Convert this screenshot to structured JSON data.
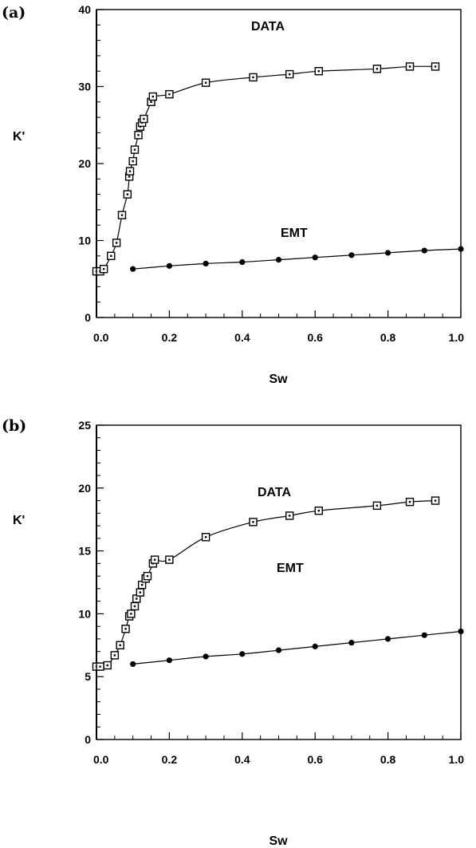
{
  "chart_data": [
    {
      "type": "line",
      "panel_label": "(a)",
      "xlabel": "Sw",
      "ylabel": "K'",
      "xlim": [
        0.0,
        1.0
      ],
      "ylim": [
        0,
        40
      ],
      "xticks": [
        "0.0",
        "0.2",
        "0.4",
        "0.6",
        "0.8",
        "1.0"
      ],
      "yticks": [
        "0",
        "10",
        "20",
        "30",
        "40"
      ],
      "grid": false,
      "legend": "none",
      "series": [
        {
          "name": "DATA",
          "marker": "open-square",
          "color": "#000000",
          "x": [
            0.0,
            0.01,
            0.02,
            0.04,
            0.055,
            0.07,
            0.085,
            0.09,
            0.092,
            0.1,
            0.105,
            0.115,
            0.12,
            0.125,
            0.13,
            0.15,
            0.155,
            0.2,
            0.3,
            0.43,
            0.53,
            0.61,
            0.77,
            0.86,
            0.93
          ],
          "y": [
            6.0,
            6.0,
            6.3,
            8.0,
            9.7,
            13.3,
            16.0,
            18.3,
            19.0,
            20.3,
            21.8,
            23.7,
            24.8,
            25.3,
            25.8,
            28.0,
            28.7,
            29.0,
            30.5,
            31.2,
            31.6,
            32.0,
            32.3,
            32.6,
            32.6
          ]
        },
        {
          "name": "EMT",
          "marker": "filled-circle",
          "color": "#000000",
          "x": [
            0.1,
            0.2,
            0.3,
            0.4,
            0.5,
            0.6,
            0.7,
            0.8,
            0.9,
            1.0
          ],
          "y": [
            6.3,
            6.7,
            7.0,
            7.2,
            7.5,
            7.8,
            8.1,
            8.4,
            8.7,
            8.9
          ]
        }
      ]
    },
    {
      "type": "line",
      "panel_label": "(b)",
      "xlabel": "Sw",
      "ylabel": "K'",
      "xlim": [
        0.0,
        1.0
      ],
      "ylim": [
        0,
        25
      ],
      "xticks": [
        "0.0",
        "0.2",
        "0.4",
        "0.6",
        "0.8",
        "1.0"
      ],
      "yticks": [
        "0",
        "5",
        "10",
        "15",
        "20",
        "25"
      ],
      "grid": false,
      "legend": "none",
      "series": [
        {
          "name": "DATA",
          "marker": "open-square",
          "color": "#000000",
          "x": [
            0.0,
            0.01,
            0.03,
            0.05,
            0.065,
            0.08,
            0.09,
            0.095,
            0.105,
            0.11,
            0.12,
            0.125,
            0.135,
            0.14,
            0.155,
            0.16,
            0.2,
            0.3,
            0.43,
            0.53,
            0.61,
            0.77,
            0.86,
            0.93
          ],
          "y": [
            5.8,
            5.8,
            5.9,
            6.7,
            7.5,
            8.8,
            9.8,
            10.0,
            10.6,
            11.2,
            11.7,
            12.3,
            12.8,
            13.0,
            14.0,
            14.3,
            14.3,
            16.1,
            17.3,
            17.8,
            18.2,
            18.6,
            18.9,
            19.0
          ]
        },
        {
          "name": "EMT",
          "marker": "filled-circle",
          "color": "#000000",
          "x": [
            0.1,
            0.2,
            0.3,
            0.4,
            0.5,
            0.6,
            0.7,
            0.8,
            0.9,
            1.0
          ],
          "y": [
            6.0,
            6.3,
            6.6,
            6.8,
            7.1,
            7.4,
            7.7,
            8.0,
            8.3,
            8.6
          ]
        }
      ]
    }
  ]
}
